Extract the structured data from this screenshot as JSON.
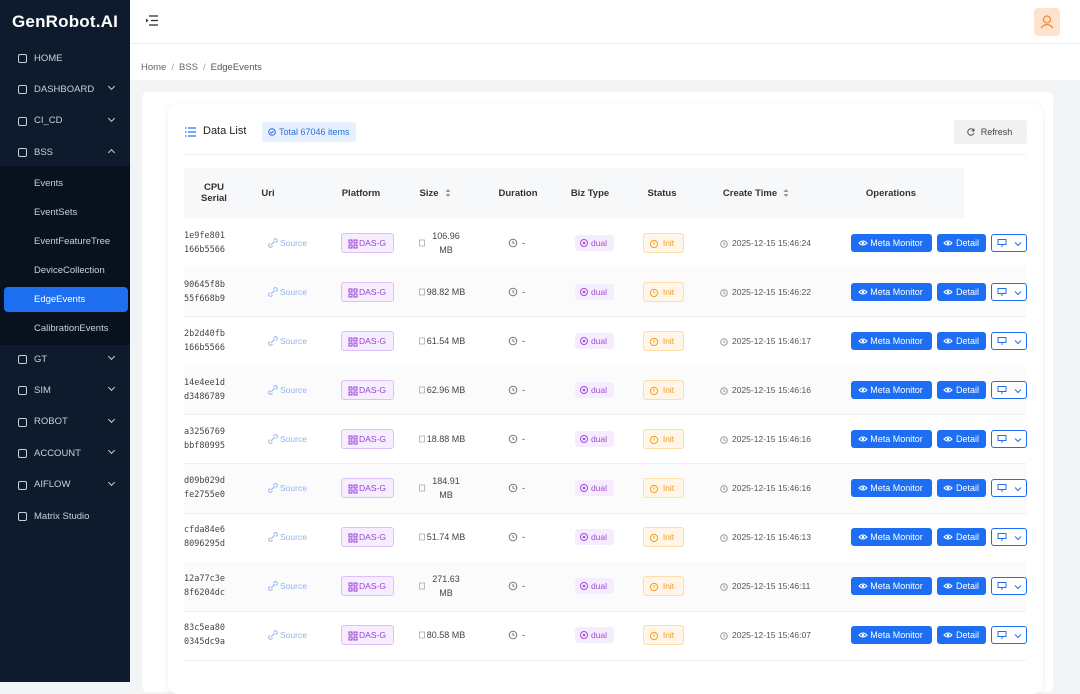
{
  "sidebar": {
    "logo": "GenRobot.AI",
    "menu": [
      {
        "label": "HOME"
      },
      {
        "label": "DASHBOARD",
        "expandable": true
      },
      {
        "label": "CI_CD",
        "expandable": true
      },
      {
        "label": "BSS",
        "expandable": true,
        "expanded": true,
        "children": [
          {
            "label": "Events"
          },
          {
            "label": "EventSets"
          },
          {
            "label": "EventFeatureTree"
          },
          {
            "label": "DeviceCollection"
          },
          {
            "label": "EdgeEvents",
            "active": true
          },
          {
            "label": "CalibrationEvents"
          }
        ]
      },
      {
        "label": "GT",
        "expandable": true
      },
      {
        "label": "SIM",
        "expandable": true
      },
      {
        "label": "ROBOT",
        "expandable": true
      },
      {
        "label": "ACCOUNT",
        "expandable": true
      },
      {
        "label": "AIFLOW",
        "expandable": true
      },
      {
        "label": "Matrix Studio"
      }
    ]
  },
  "breadcrumb": {
    "items": [
      "Home",
      "BSS",
      "EdgeEvents"
    ],
    "separator": "/"
  },
  "card": {
    "title": "Data List",
    "total": "Total 67046 items",
    "refresh": "Refresh"
  },
  "table": {
    "columns": [
      {
        "label": "CPU Serial"
      },
      {
        "label": "Uri"
      },
      {
        "label": "Platform"
      },
      {
        "label": "Size",
        "sortable": true
      },
      {
        "label": "Duration"
      },
      {
        "label": "Biz Type"
      },
      {
        "label": "Status"
      },
      {
        "label": "Create Time",
        "sortable": true
      },
      {
        "label": "Operations"
      }
    ],
    "rows": [
      {
        "cpu_serial": "1e9fe801166b5566",
        "uri": "Source",
        "platform": "DAS-G",
        "size": "106.96 MB",
        "duration": "-",
        "biz_type": "dual",
        "status": "Init",
        "create_time": "2025-12-15 15:46:24",
        "actions": [
          "Meta Monitor",
          "Detail"
        ]
      },
      {
        "cpu_serial": "90645f8b55f668b9",
        "uri": "Source",
        "platform": "DAS-G",
        "size": "98.82 MB",
        "duration": "-",
        "biz_type": "dual",
        "status": "Init",
        "create_time": "2025-12-15 15:46:22",
        "actions": [
          "Meta Monitor",
          "Detail"
        ]
      },
      {
        "cpu_serial": "2b2d40fb166b5566",
        "uri": "Source",
        "platform": "DAS-G",
        "size": "61.54 MB",
        "duration": "-",
        "biz_type": "dual",
        "status": "Init",
        "create_time": "2025-12-15 15:46:17",
        "actions": [
          "Meta Monitor",
          "Detail"
        ]
      },
      {
        "cpu_serial": "14e4ee1dd3486789",
        "uri": "Source",
        "platform": "DAS-G",
        "size": "62.96 MB",
        "duration": "-",
        "biz_type": "dual",
        "status": "Init",
        "create_time": "2025-12-15 15:46:16",
        "actions": [
          "Meta Monitor",
          "Detail"
        ]
      },
      {
        "cpu_serial": "a3256769bbf80995",
        "uri": "Source",
        "platform": "DAS-G",
        "size": "18.88 MB",
        "duration": "-",
        "biz_type": "dual",
        "status": "Init",
        "create_time": "2025-12-15 15:46:16",
        "actions": [
          "Meta Monitor",
          "Detail"
        ]
      },
      {
        "cpu_serial": "d09b029dfe2755e0",
        "uri": "Source",
        "platform": "DAS-G",
        "size": "184.91 MB",
        "duration": "-",
        "biz_type": "dual",
        "status": "Init",
        "create_time": "2025-12-15 15:46:16",
        "actions": [
          "Meta Monitor",
          "Detail"
        ]
      },
      {
        "cpu_serial": "cfda84e68096295d",
        "uri": "Source",
        "platform": "DAS-G",
        "size": "51.74 MB",
        "duration": "-",
        "biz_type": "dual",
        "status": "Init",
        "create_time": "2025-12-15 15:46:13",
        "actions": [
          "Meta Monitor",
          "Detail"
        ]
      },
      {
        "cpu_serial": "12a77c3e8f6204dc",
        "uri": "Source",
        "platform": "DAS-G",
        "size": "271.63 MB",
        "duration": "-",
        "biz_type": "dual",
        "status": "Init",
        "create_time": "2025-12-15 15:46:11",
        "actions": [
          "Meta Monitor",
          "Detail"
        ]
      },
      {
        "cpu_serial": "83c5ea800345dc9a",
        "uri": "Source",
        "platform": "DAS-G",
        "size": "80.58 MB",
        "duration": "-",
        "biz_type": "dual",
        "status": "Init",
        "create_time": "2025-12-15 15:46:07",
        "actions": [
          "Meta Monitor",
          "Detail"
        ]
      }
    ]
  }
}
